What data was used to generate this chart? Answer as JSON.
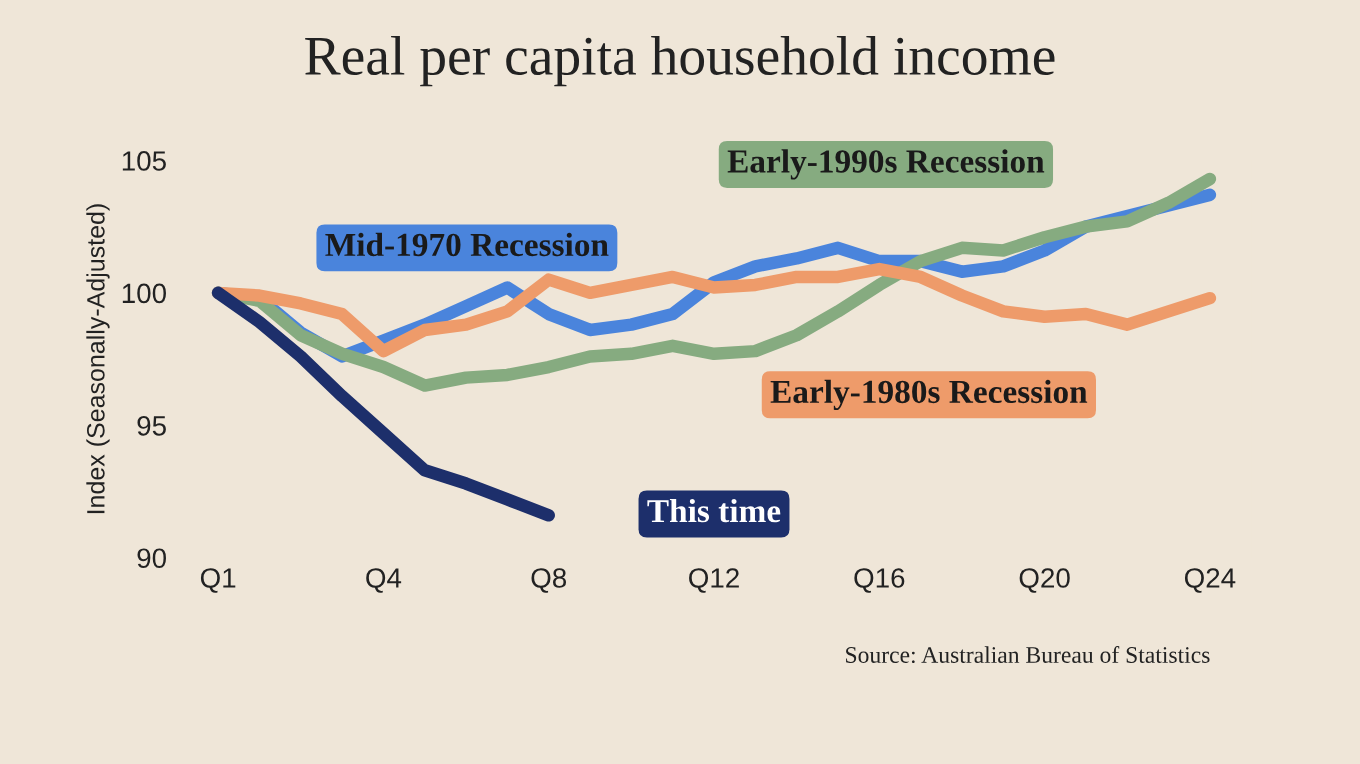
{
  "chart_data": {
    "type": "line",
    "title": "Real per capita household income",
    "ylabel": "Index (Seasonally-Adjusted)",
    "categories": [
      "Q1",
      null,
      null,
      null,
      "Q4",
      null,
      null,
      null,
      "Q8",
      null,
      null,
      null,
      "Q12",
      null,
      null,
      null,
      "Q16",
      null,
      null,
      null,
      "Q20",
      null,
      null,
      null,
      "Q24"
    ],
    "ylim": [
      90,
      105
    ],
    "yticks": [
      90,
      95,
      100,
      105
    ],
    "series": [
      {
        "name": "Mid-1970 Recession",
        "color": "#4a84dc",
        "values": [
          100,
          99.8,
          98.5,
          97.6,
          98.2,
          98.8,
          99.5,
          100.2,
          99.2,
          98.6,
          98.8,
          99.2,
          100.4,
          101.0,
          101.3,
          101.7,
          101.2,
          101.2,
          100.8,
          101.0,
          101.6,
          102.5,
          102.9,
          103.3,
          103.7
        ]
      },
      {
        "name": "Early-1990s Recession",
        "color": "#86ab80",
        "values": [
          100,
          99.7,
          98.4,
          97.7,
          97.2,
          96.5,
          96.8,
          96.9,
          97.2,
          97.6,
          97.7,
          98.0,
          97.7,
          97.8,
          98.4,
          99.3,
          100.3,
          101.2,
          101.7,
          101.6,
          102.1,
          102.5,
          102.7,
          103.4,
          104.3
        ]
      },
      {
        "name": "Early-1980s Recession",
        "color": "#ee9b6a",
        "values": [
          100,
          99.9,
          99.6,
          99.2,
          97.8,
          98.6,
          98.8,
          99.3,
          100.5,
          100.0,
          100.3,
          100.6,
          100.2,
          100.3,
          100.6,
          100.6,
          100.9,
          100.6,
          99.9,
          99.3,
          99.1,
          99.2,
          98.8,
          99.3,
          99.8
        ]
      },
      {
        "name": "This time",
        "color": "#1d2f6b",
        "values": [
          100,
          98.9,
          97.6,
          96.1,
          94.7,
          93.3,
          92.8,
          92.2,
          91.6,
          null,
          null,
          null,
          null,
          null,
          null,
          null,
          null,
          null,
          null,
          null,
          null,
          null,
          null,
          null,
          null
        ]
      }
    ],
    "annotations": [
      "Source: Australian Bureau of Statistics"
    ],
    "legend": false,
    "grid": false
  }
}
